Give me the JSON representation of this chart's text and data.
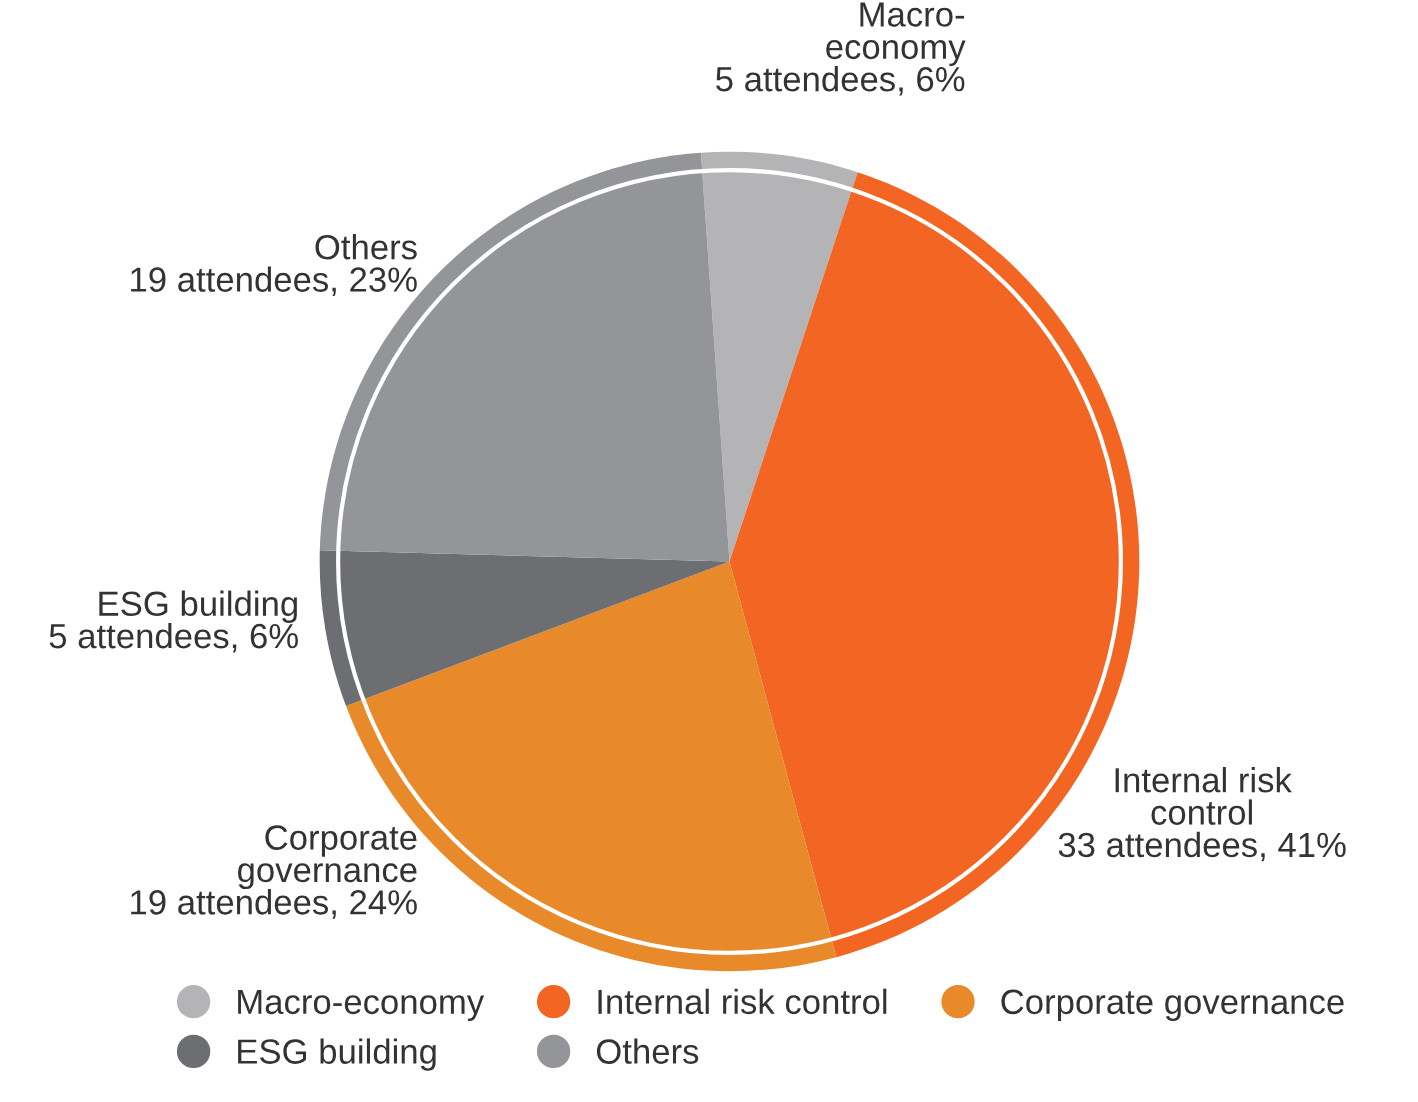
{
  "chart_data": {
    "type": "pie",
    "categories": [
      "Macro-economy",
      "Internal risk control",
      "Corporate governance",
      "ESG building",
      "Others"
    ],
    "values": [
      5,
      33,
      19,
      5,
      19
    ],
    "colors": [
      "#b4b4b7",
      "#f26522",
      "#e88a2a",
      "#6d6e71",
      "#949599"
    ],
    "value_labels": [
      "Macro-\neconomy\n5 attendees, 6%",
      "Internal risk\ncontrol\n33 attendees, 41%",
      "Corporate\ngovernance\n19 attendees, 24%",
      "ESG building\n5 attendees, 6%",
      "Others\n19 attendees, 23%"
    ],
    "legend": "bottom"
  }
}
